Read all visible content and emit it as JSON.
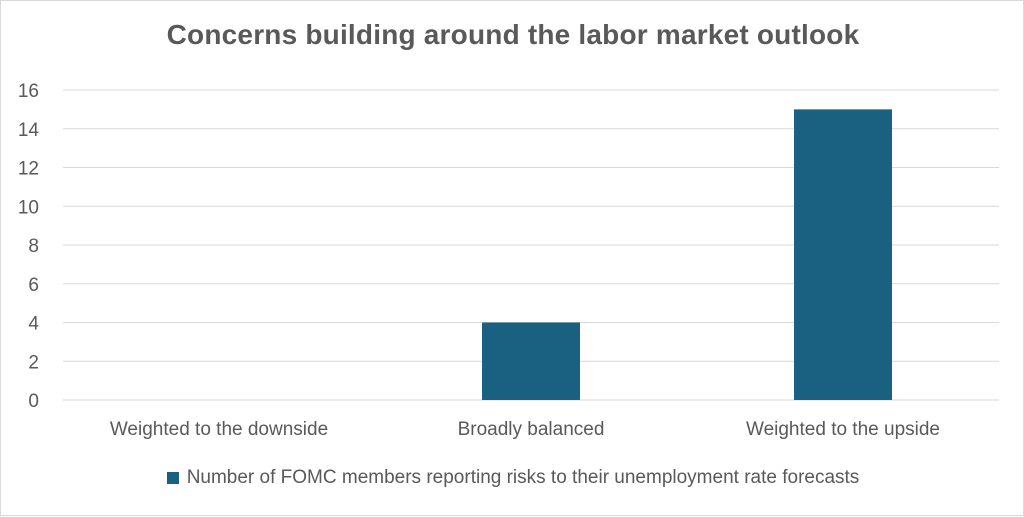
{
  "chart_data": {
    "type": "bar",
    "title": "Concerns building around the labor market outlook",
    "categories": [
      "Weighted to the downside",
      "Broadly balanced",
      "Weighted to the upside"
    ],
    "series": [
      {
        "name": "Number of FOMC members reporting risks to their unemployment rate forecasts",
        "values": [
          0,
          4,
          15
        ],
        "color": "#1a6080"
      }
    ],
    "xlabel": "",
    "ylabel": "",
    "ylim": [
      0,
      16
    ],
    "yticks": [
      0,
      2,
      4,
      6,
      8,
      10,
      12,
      14,
      16
    ],
    "grid": true,
    "legend_position": "bottom"
  }
}
